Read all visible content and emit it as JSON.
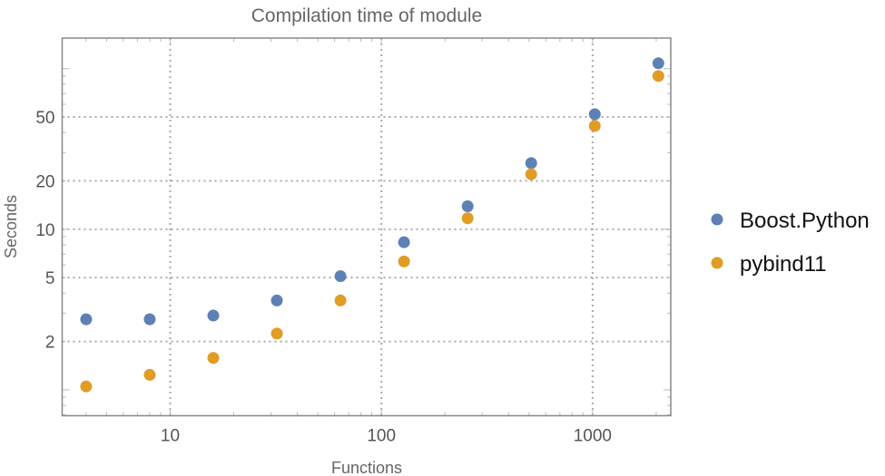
{
  "chart_data": {
    "type": "scatter",
    "title": "Compilation time of module",
    "xlabel": "Functions",
    "ylabel": "Seconds",
    "xscale": "log",
    "yscale": "log",
    "xlim": [
      3.08,
      2345
    ],
    "ylim": [
      0.69,
      155
    ],
    "grid": true,
    "legend_position": "right",
    "x_ticks": [
      {
        "value": 10,
        "label": "10"
      },
      {
        "value": 100,
        "label": "100"
      },
      {
        "value": 1000,
        "label": "1000"
      }
    ],
    "y_ticks": [
      {
        "value": 2,
        "label": "2"
      },
      {
        "value": 5,
        "label": "5"
      },
      {
        "value": 10,
        "label": "10"
      },
      {
        "value": 20,
        "label": "20"
      },
      {
        "value": 50,
        "label": "50"
      }
    ],
    "x": [
      4,
      8,
      16,
      32,
      64,
      128,
      256,
      512,
      1024,
      2048
    ],
    "series": [
      {
        "name": "Boost.Python",
        "color": "#5e81b5",
        "values": [
          2.75,
          2.75,
          2.9,
          3.6,
          5.1,
          8.3,
          13.9,
          25.8,
          52,
          108
        ]
      },
      {
        "name": "pybind11",
        "color": "#e19c24",
        "values": [
          1.05,
          1.24,
          1.58,
          2.24,
          3.6,
          6.3,
          11.7,
          22,
          44,
          90
        ]
      }
    ]
  }
}
